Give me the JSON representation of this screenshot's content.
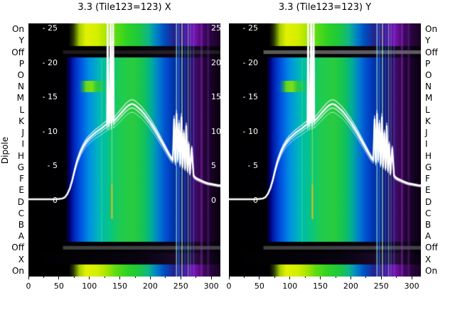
{
  "figure": {
    "ylabel_left": "Dipole"
  },
  "chart_data": {
    "type": "heatmap",
    "title_left": "3.3 (Tile123=123) X",
    "title_right": "3.3 (Tile123=123) Y",
    "x_ticks": [
      0,
      50,
      100,
      150,
      200,
      250,
      300
    ],
    "x_minor_ticks": [
      25,
      75,
      125,
      175,
      225,
      275
    ],
    "xlim": [
      0,
      315
    ],
    "value_axis": {
      "v_top": 25.7,
      "ticks_inner": [
        {
          "v": 25,
          "label": "- 25"
        },
        {
          "v": 20,
          "label": "- 20"
        },
        {
          "v": 15,
          "label": "- 15"
        },
        {
          "v": 10,
          "label": "- 10"
        },
        {
          "v": 5,
          "label": "- 5"
        },
        {
          "v": 0,
          "label": "0"
        }
      ],
      "ticks_right_edge": [
        {
          "v": 25,
          "label": "25"
        },
        {
          "v": 20,
          "label": "20"
        },
        {
          "v": 15,
          "label": "15"
        },
        {
          "v": 10,
          "label": "10"
        },
        {
          "v": 5,
          "label": "5"
        },
        {
          "v": 0,
          "label": "0"
        }
      ]
    },
    "rows": [
      {
        "label": "On",
        "style": "hot"
      },
      {
        "label": "Y",
        "style": "hot"
      },
      {
        "label": "Off",
        "style": "off"
      },
      {
        "label": "P",
        "style": "norm"
      },
      {
        "label": "O",
        "style": "norm"
      },
      {
        "label": "N",
        "style": "norm2"
      },
      {
        "label": "M",
        "style": "norm"
      },
      {
        "label": "L",
        "style": "norm"
      },
      {
        "label": "K",
        "style": "norm"
      },
      {
        "label": "J",
        "style": "norm"
      },
      {
        "label": "I",
        "style": "norm"
      },
      {
        "label": "H",
        "style": "norm"
      },
      {
        "label": "G",
        "style": "norm"
      },
      {
        "label": "F",
        "style": "norm"
      },
      {
        "label": "E",
        "style": "norm"
      },
      {
        "label": "D",
        "style": "norm"
      },
      {
        "label": "C",
        "style": "norm"
      },
      {
        "label": "B",
        "style": "norm"
      },
      {
        "label": "A",
        "style": "norm"
      },
      {
        "label": "Off",
        "style": "off"
      },
      {
        "label": "X",
        "style": "dark"
      },
      {
        "label": "On",
        "style": "hot"
      }
    ],
    "palettes": {
      "norm": [
        [
          0,
          "#000000"
        ],
        [
          0.195,
          "#000004"
        ],
        [
          0.215,
          "#000078"
        ],
        [
          0.235,
          "#0023b4"
        ],
        [
          0.27,
          "#0051e0"
        ],
        [
          0.315,
          "#008ee4"
        ],
        [
          0.365,
          "#00b6bc"
        ],
        [
          0.42,
          "#06c487"
        ],
        [
          0.475,
          "#1ecb52"
        ],
        [
          0.545,
          "#2acc3e"
        ],
        [
          0.6,
          "#14c356"
        ],
        [
          0.64,
          "#00ae96"
        ],
        [
          0.675,
          "#0082cc"
        ],
        [
          0.71,
          "#0054d4"
        ],
        [
          0.745,
          "#003ab8"
        ],
        [
          0.775,
          "#062c8e"
        ],
        [
          0.805,
          "#101a6c"
        ],
        [
          0.84,
          "#2a0c5a"
        ],
        [
          0.872,
          "#3e0c66"
        ],
        [
          0.9,
          "#300644"
        ],
        [
          0.932,
          "#1e0330"
        ],
        [
          0.965,
          "#14021e"
        ],
        [
          1,
          "#0c0014"
        ]
      ],
      "norm2": [
        [
          0,
          "#000000"
        ],
        [
          0.195,
          "#000004"
        ],
        [
          0.215,
          "#000078"
        ],
        [
          0.235,
          "#0023b4"
        ],
        [
          0.265,
          "#004fd8"
        ],
        [
          0.285,
          "#1d9e6a"
        ],
        [
          0.3,
          "#66d81e"
        ],
        [
          0.33,
          "#7ce014"
        ],
        [
          0.355,
          "#30c83c"
        ],
        [
          0.4,
          "#0cc47c"
        ],
        [
          0.475,
          "#1ecb52"
        ],
        [
          0.545,
          "#2acc3e"
        ],
        [
          0.6,
          "#14c356"
        ],
        [
          0.64,
          "#00ae96"
        ],
        [
          0.675,
          "#0082cc"
        ],
        [
          0.71,
          "#0054d4"
        ],
        [
          0.745,
          "#003ab8"
        ],
        [
          0.775,
          "#062c8e"
        ],
        [
          0.805,
          "#101a6c"
        ],
        [
          0.84,
          "#2a0c5a"
        ],
        [
          0.872,
          "#3e0c66"
        ],
        [
          0.9,
          "#300644"
        ],
        [
          0.932,
          "#1e0330"
        ],
        [
          0.965,
          "#14021e"
        ],
        [
          1,
          "#0c0014"
        ]
      ],
      "hot": [
        [
          0,
          "#000000"
        ],
        [
          0.21,
          "#000000"
        ],
        [
          0.235,
          "#2c3c00"
        ],
        [
          0.265,
          "#a8cc00"
        ],
        [
          0.3,
          "#e2f200"
        ],
        [
          0.36,
          "#d4ee00"
        ],
        [
          0.405,
          "#a8e600"
        ],
        [
          0.455,
          "#5cdc12"
        ],
        [
          0.515,
          "#2ed226"
        ],
        [
          0.575,
          "#1ec83e"
        ],
        [
          0.625,
          "#0eb687"
        ],
        [
          0.665,
          "#0084c8"
        ],
        [
          0.705,
          "#0050c4"
        ],
        [
          0.75,
          "#1c2a96"
        ],
        [
          0.785,
          "#3a1070"
        ],
        [
          0.825,
          "#5a1090"
        ],
        [
          0.865,
          "#7a14b0"
        ],
        [
          0.9,
          "#4c0a72"
        ],
        [
          0.945,
          "#2c0642"
        ],
        [
          1,
          "#1a0226"
        ]
      ],
      "off": [
        [
          0,
          "#000000"
        ],
        [
          0.5,
          "#020204"
        ],
        [
          0.82,
          "#0e0616"
        ],
        [
          0.88,
          "#160a22"
        ],
        [
          0.94,
          "#0c0414"
        ],
        [
          1,
          "#060008"
        ]
      ],
      "dark": [
        [
          0,
          "#000000"
        ],
        [
          0.3,
          "#040208"
        ],
        [
          0.6,
          "#0a0412"
        ],
        [
          0.8,
          "#1e0a2e"
        ],
        [
          0.87,
          "#2a0e3e"
        ],
        [
          0.93,
          "#140520"
        ],
        [
          1,
          "#0a0112"
        ]
      ]
    },
    "stripes": [
      {
        "u": 120,
        "w": 1.5,
        "color": "rgba(80,255,120,0.3)",
        "rows": [
          3,
          19
        ]
      },
      {
        "u": 137,
        "w": 1.5,
        "color": "rgba(220,255,40,0.45)",
        "rows": [
          3,
          14
        ]
      },
      {
        "u": 137,
        "w": 2,
        "color": "rgba(255,190,0,0.9)",
        "rows": [
          14,
          17
        ]
      },
      {
        "u": 243,
        "w": 1.6,
        "color": "rgba(140,230,255,0.75)"
      },
      {
        "u": 247,
        "w": 2.2,
        "color": "rgba(40,110,255,0.65)"
      },
      {
        "u": 252,
        "w": 1.6,
        "color": "rgba(170,255,230,0.7)"
      },
      {
        "u": 257,
        "w": 2.2,
        "color": "rgba(30,80,230,0.55)"
      },
      {
        "u": 262,
        "w": 1.6,
        "color": "rgba(130,210,255,0.55)"
      },
      {
        "u": 266,
        "w": 1.4,
        "color": "rgba(90,160,255,0.45)"
      },
      {
        "u": 271,
        "w": 2,
        "color": "rgba(100,70,220,0.5)"
      },
      {
        "u": 284,
        "w": 3,
        "color": "rgba(160,50,210,0.4)"
      },
      {
        "u": 295,
        "w": 3,
        "color": "rgba(130,40,190,0.35)"
      }
    ],
    "h_streaks": [
      {
        "row": 2,
        "alpha": [
          0.18,
          0.6
        ]
      },
      {
        "row": 19,
        "alpha": [
          0.42,
          0.42
        ]
      }
    ],
    "spectrum_line": {
      "x": [
        0,
        15,
        30,
        45,
        55,
        60,
        64,
        68,
        72,
        76,
        80,
        85,
        90,
        95,
        100,
        105,
        110,
        115,
        120,
        124,
        127,
        129,
        130,
        131,
        133,
        135,
        136,
        137,
        139,
        140,
        141,
        144,
        148,
        152,
        156,
        160,
        164,
        168,
        172,
        176,
        180,
        185,
        190,
        195,
        200,
        205,
        210,
        215,
        220,
        225,
        230,
        234,
        237,
        239,
        241,
        243,
        245,
        247,
        249,
        251,
        253,
        255,
        257,
        259,
        261,
        263,
        265,
        268,
        271,
        274,
        278,
        283,
        288,
        294,
        300,
        306,
        312,
        315
      ],
      "v": [
        0.2,
        0.2,
        0.2,
        0.2,
        0.3,
        0.5,
        1.0,
        1.8,
        3.0,
        4.5,
        5.8,
        7.0,
        7.9,
        8.6,
        9.1,
        9.5,
        9.9,
        10.2,
        10.5,
        10.8,
        11.0,
        11.1,
        27,
        11.2,
        11.3,
        27,
        11.3,
        11.4,
        26.5,
        11.5,
        11.6,
        11.9,
        12.3,
        12.7,
        13.1,
        13.5,
        13.8,
        14.0,
        14.0,
        13.8,
        13.5,
        13.1,
        12.6,
        12.0,
        11.4,
        10.7,
        10.0,
        9.2,
        8.4,
        7.6,
        6.8,
        6.2,
        5.9,
        11.8,
        5.6,
        12.6,
        6.0,
        11.2,
        5.3,
        12.1,
        5.0,
        9.8,
        4.7,
        10.8,
        4.4,
        8.2,
        4.0,
        7.6,
        3.6,
        3.3,
        3.1,
        2.9,
        2.7,
        2.5,
        2.4,
        2.3,
        2.2,
        2.2
      ]
    }
  }
}
